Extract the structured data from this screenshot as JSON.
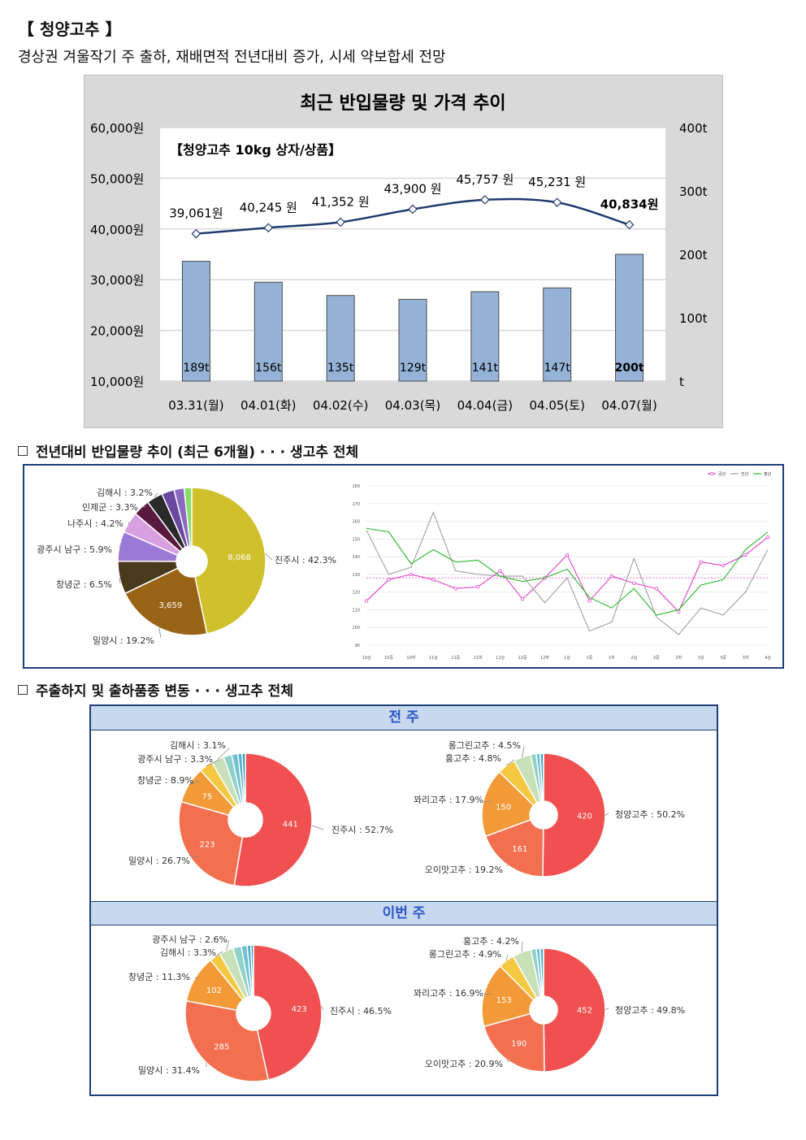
{
  "header": {
    "title": "【 청양고추 】",
    "subtitle": "경상권 겨울작기 주 출하, 재배면적 전년대비 증가, 시세 약보합세 전망"
  },
  "sections": {
    "s1": "전년대비 반입물량 추이 (최근 6개월) · · · 생고추 전체",
    "s2": "주출하지 및 출하품종 변동 · · · 생고추 전체"
  },
  "panel3": {
    "prev_label": "전 주",
    "curr_label": "이번 주"
  },
  "colors": {
    "bar": "#95b3d7",
    "price_line": "#1f3a6e",
    "pink": "#e040c8",
    "grey": "#a0a0a0",
    "green": "#28b828"
  },
  "chart_data": [
    {
      "type": "bar",
      "title": "최근 반입물량 및 가격 추이",
      "inner_label": "【청양고추 10kg 상자/상품】",
      "categories": [
        "03.31(월)",
        "04.01(화)",
        "04.02(수)",
        "04.03(목)",
        "04.04(금)",
        "04.05(토)",
        "04.07(월)"
      ],
      "series": [
        {
          "values": [
            189,
            156,
            135,
            129,
            141,
            147,
            200
          ],
          "value_labels": [
            "189t",
            "156t",
            "135t",
            "129t",
            "141t",
            "147t",
            "200t"
          ],
          "axis": "right"
        },
        {
          "values": [
            39061,
            40245,
            41352,
            43900,
            45757,
            45231,
            40834
          ],
          "value_labels": [
            "39,061원",
            "40,245 원",
            "41,352 원",
            "43,900 원",
            "45,757 원",
            "45,231 원",
            "40,834원"
          ],
          "axis": "left"
        }
      ],
      "y_left_ticks": [
        "60,000원",
        "50,000원",
        "40,000원",
        "30,000원",
        "20,000원",
        "10,000원"
      ],
      "y_left_range": [
        10000,
        60000
      ],
      "y_right_ticks": [
        "400t",
        "300t",
        "200t",
        "100t",
        "t"
      ],
      "y_right_range": [
        0,
        400
      ]
    },
    {
      "type": "pie",
      "labels": [
        "진주시 : 42.3%",
        "밀양시 : 19.2%",
        "창녕군 : 6.5%",
        "광주시 남구 : 5.9%",
        "나주시 : 4.2%",
        "인제군 : 3.3%",
        "김해시 : 3.2%"
      ],
      "shares": [
        42.3,
        19.2,
        6.5,
        5.9,
        4.2,
        3.3,
        3.2,
        2.5,
        2.0,
        1.5
      ],
      "value_labels": [
        "8,068",
        "3,659"
      ],
      "colors": [
        "#cfc02c",
        "#9a6416",
        "#4a3a1c",
        "#9a7ad6",
        "#d8a0e0",
        "#5a1a40",
        "#2a2a2a",
        "#6a48a0",
        "#8a6ac0",
        "#88dd66"
      ]
    },
    {
      "type": "line",
      "legend": [
        "금년",
        "전년",
        "평년"
      ],
      "y_ticks": [
        "180",
        "170",
        "160",
        "150",
        "140",
        "130",
        "120",
        "110",
        "100",
        "90"
      ],
      "y_range": [
        90,
        180
      ],
      "x": [
        "10상",
        "10중",
        "10하",
        "11상",
        "11중",
        "11하",
        "12상",
        "12중",
        "12하",
        "1상",
        "1중",
        "1하",
        "2상",
        "2중",
        "2하",
        "3상",
        "3중",
        "3하",
        "4상"
      ],
      "series": [
        {
          "values": [
            115,
            127,
            130,
            127,
            122,
            123,
            132,
            116,
            128,
            141,
            115,
            129,
            125,
            122,
            109,
            137,
            135,
            141,
            151
          ]
        },
        {
          "values": [
            155,
            130,
            134,
            165,
            132,
            130,
            129,
            129,
            114,
            128,
            98,
            103,
            139,
            106,
            96,
            111,
            107,
            120,
            144
          ]
        },
        {
          "values": [
            156,
            154,
            136,
            144,
            137,
            138,
            129,
            126,
            128,
            133,
            117,
            111,
            122,
            107,
            110,
            124,
            127,
            144,
            154
          ]
        }
      ],
      "reference": 128
    },
    {
      "type": "pie",
      "labels": [
        "진주시 : 52.7%",
        "밀양시 : 26.7%",
        "창녕군 : 8.9%",
        "광주시 남구 : 3.3%",
        "김해시 : 3.1%"
      ],
      "shares": [
        52.7,
        26.7,
        8.9,
        3.3,
        3.1,
        2.0,
        1.5,
        1.0,
        0.8
      ],
      "value_labels": [
        "441",
        "223",
        "75"
      ],
      "colors": [
        "#f05050",
        "#f27050",
        "#f29a38",
        "#f4c840",
        "#c8e0b8",
        "#8fd0c8",
        "#70c0d0",
        "#4fb0c8",
        "#3a9abf"
      ]
    },
    {
      "type": "pie",
      "labels": [
        "청양고추 : 50.2%",
        "오이맛고추 : 19.2%",
        "꽈리고추 : 17.9%",
        "홍고추 : 4.8%",
        "롱그린고추 : 4.5%"
      ],
      "shares": [
        50.2,
        19.2,
        17.9,
        4.8,
        4.5,
        1.5,
        1.0,
        0.9
      ],
      "value_labels": [
        "420",
        "161",
        "150"
      ],
      "colors": [
        "#f05050",
        "#f27050",
        "#f29a38",
        "#f4c840",
        "#c8e0b8",
        "#8fd0c8",
        "#70c0d0",
        "#4fb0c8"
      ]
    },
    {
      "type": "pie",
      "labels": [
        "진주시 : 46.5%",
        "밀양시 : 31.4%",
        "창녕군 : 11.3%",
        "김해시 : 3.3%",
        "광주시 남구 : 2.6%"
      ],
      "shares": [
        46.5,
        31.4,
        11.3,
        2.6,
        3.3,
        2.0,
        1.4,
        0.9,
        0.6
      ],
      "value_labels": [
        "423",
        "285",
        "102"
      ],
      "colors": [
        "#f05050",
        "#f27050",
        "#f29a38",
        "#f4c840",
        "#c8e0b8",
        "#8fd0c8",
        "#70c0d0",
        "#4fb0c8",
        "#3a9abf"
      ]
    },
    {
      "type": "pie",
      "labels": [
        "청양고추 : 49.8%",
        "오이맛고추 : 20.9%",
        "꽈리고추 : 16.9%",
        "롱그린고추 : 4.9%",
        "홍고추 : 4.2%"
      ],
      "shares": [
        49.8,
        20.9,
        16.9,
        4.2,
        4.9,
        1.4,
        1.0,
        0.9
      ],
      "value_labels": [
        "452",
        "190",
        "153"
      ],
      "colors": [
        "#f05050",
        "#f27050",
        "#f29a38",
        "#f4c840",
        "#c8e0b8",
        "#8fd0c8",
        "#70c0d0",
        "#4fb0c8"
      ]
    }
  ]
}
